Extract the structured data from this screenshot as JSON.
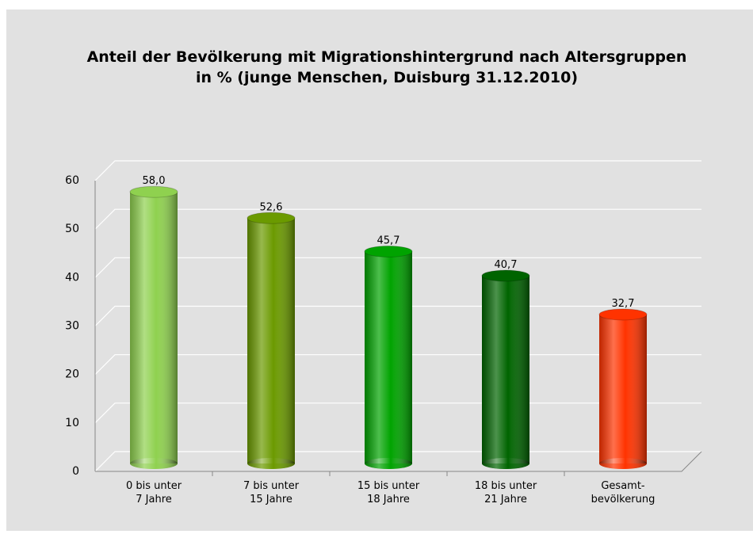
{
  "chart_data": {
    "type": "bar",
    "title": [
      "Anteil der Bevölkerung mit Migrationshintergrund nach Altersgruppen",
      "in % (junge Menschen, Duisburg 31.12.2010)"
    ],
    "categories": [
      [
        "0 bis unter",
        "7 Jahre"
      ],
      [
        "7 bis unter",
        "15 Jahre"
      ],
      [
        "15 bis unter",
        "18 Jahre"
      ],
      [
        "18 bis unter",
        "21 Jahre"
      ],
      [
        "Gesamt-",
        "bevölkerung"
      ]
    ],
    "values": [
      58.0,
      52.6,
      45.7,
      40.7,
      32.7
    ],
    "value_labels": [
      "58,0",
      "52,6",
      "45,7",
      "40,7",
      "32,7"
    ],
    "colors": [
      "#8fd14f",
      "#6b9a00",
      "#00a300",
      "#006400",
      "#ff3300"
    ],
    "ylim": [
      0,
      60
    ],
    "yticks": [
      0,
      10,
      20,
      30,
      40,
      50,
      60
    ],
    "grid": true
  }
}
